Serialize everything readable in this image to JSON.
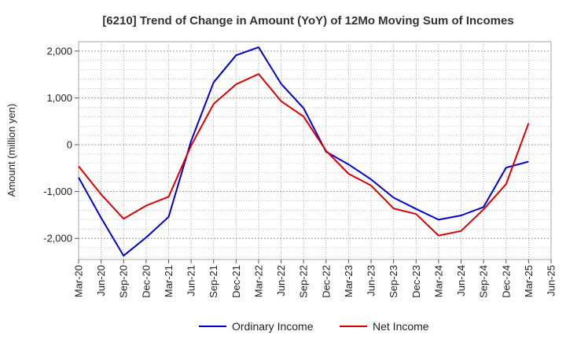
{
  "chart_data": {
    "type": "line",
    "title": "[6210]  Trend of Change in Amount (YoY) of 12Mo Moving Sum of Incomes",
    "xlabel": "",
    "ylabel": "Amount (million yen)",
    "ylim": [
      -2450,
      2200
    ],
    "yticks": [
      2000,
      1000,
      0,
      -1000,
      -2000
    ],
    "ytick_labels": [
      "2,000",
      "1,000",
      "0",
      "-1,000",
      "-2,000"
    ],
    "grid": true,
    "legend_position": "bottom-center",
    "x": [
      "Mar-20",
      "Jun-20",
      "Sep-20",
      "Dec-20",
      "Mar-21",
      "Jun-21",
      "Sep-21",
      "Dec-21",
      "Mar-22",
      "Jun-22",
      "Sep-22",
      "Dec-22",
      "Mar-23",
      "Jun-23",
      "Sep-23",
      "Dec-23",
      "Mar-24",
      "Jun-24",
      "Sep-24",
      "Dec-24",
      "Mar-25",
      "Jun-25"
    ],
    "series": [
      {
        "name": "Ordinary Income",
        "color": "#0000cc",
        "values": [
          -700,
          -1560,
          -2370,
          -1980,
          -1540,
          80,
          1330,
          1910,
          2080,
          1300,
          780,
          -150,
          -420,
          -740,
          -1130,
          -1370,
          -1600,
          -1510,
          -1330,
          -490,
          -360,
          null
        ]
      },
      {
        "name": "Net Income",
        "color": "#dd0000",
        "values": [
          -460,
          -1060,
          -1580,
          -1300,
          -1110,
          -20,
          870,
          1290,
          1510,
          930,
          600,
          -130,
          -620,
          -870,
          -1360,
          -1480,
          -1940,
          -1840,
          -1380,
          -840,
          460,
          null
        ]
      }
    ]
  }
}
